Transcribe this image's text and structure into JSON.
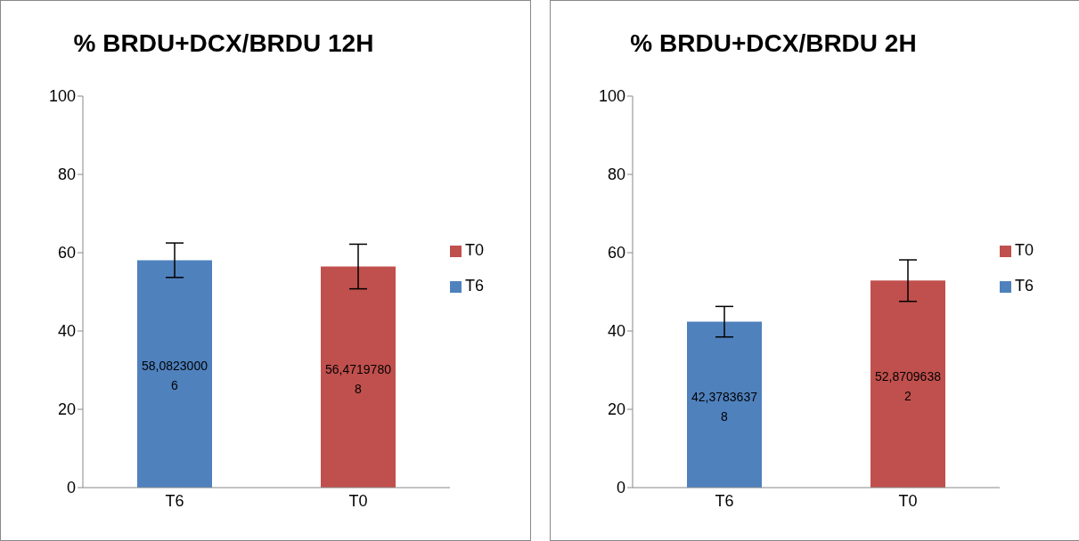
{
  "chart_data": [
    {
      "type": "bar",
      "title": "% BRDU+DCX/BRDU 12H",
      "categories": [
        "T6",
        "T0"
      ],
      "series": [
        {
          "name": "T6",
          "color": "#4f81bd",
          "values": [
            58.08230006,
            null
          ],
          "errors": [
            4.4,
            null
          ],
          "value_labels": [
            "58,08230006",
            null
          ]
        },
        {
          "name": "T0",
          "color": "#c0504d",
          "values": [
            null,
            56.47197808
          ],
          "errors": [
            null,
            5.7
          ],
          "value_labels": [
            null,
            "56,47197808"
          ]
        }
      ],
      "ylim": [
        0,
        100
      ],
      "yticks": [
        0,
        20,
        40,
        60,
        80,
        100
      ],
      "legend": "right"
    },
    {
      "type": "bar",
      "title": "% BRDU+DCX/BRDU 2H",
      "categories": [
        "T6",
        "T0"
      ],
      "series": [
        {
          "name": "T6",
          "color": "#4f81bd",
          "values": [
            42.37836378,
            null
          ],
          "errors": [
            3.9,
            null
          ],
          "value_labels": [
            "42,37836378",
            null
          ]
        },
        {
          "name": "T0",
          "color": "#c0504d",
          "values": [
            null,
            52.87096382
          ],
          "errors": [
            null,
            5.3
          ],
          "value_labels": [
            null,
            "52,87096382"
          ]
        }
      ],
      "ylim": [
        0,
        100
      ],
      "yticks": [
        0,
        20,
        40,
        60,
        80,
        100
      ],
      "legend": "right"
    }
  ]
}
